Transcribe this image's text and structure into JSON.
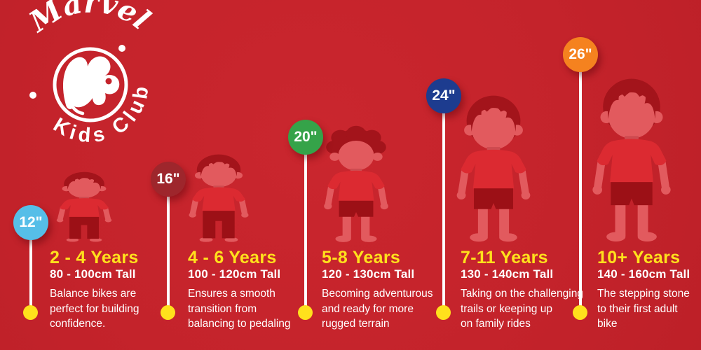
{
  "logo": {
    "brand": "Marvel",
    "club": "Kids Club"
  },
  "colors": {
    "background": "#C4232B",
    "accent_yellow": "#FFE11C",
    "text_white": "#FFFFFF"
  },
  "figure_colors": {
    "hair": "#A3141B",
    "skin": "#E25A5E",
    "skin_dark": "#CE4B50",
    "shirt": "#DC2A31",
    "bottoms": "#9C1016"
  },
  "columns": [
    {
      "badge": {
        "label": "12\"",
        "color": "#56BEE8"
      },
      "age": "2 - 4 Years",
      "height": "80 - 100cm Tall",
      "description": "Balance bikes are\nperfect for building\nconfidence."
    },
    {
      "badge": {
        "label": "16\"",
        "color": "#9E262C"
      },
      "age": "4 - 6 Years",
      "height": "100 - 120cm Tall",
      "description": "Ensures a smooth\ntransition from\nbalancing to pedaling"
    },
    {
      "badge": {
        "label": "20\"",
        "color": "#35A349"
      },
      "age": "5-8 Years",
      "height": "120 - 130cm Tall",
      "description": "Becoming adventurous\nand ready for more\nrugged terrain"
    },
    {
      "badge": {
        "label": "24\"",
        "color": "#1D3C8F"
      },
      "age": "7-11 Years",
      "height": "130 - 140cm Tall",
      "description": "Taking on the challenging\ntrails or keeping up\non family rides"
    },
    {
      "badge": {
        "label": "26\"",
        "color": "#F5821F"
      },
      "age": "10+ Years",
      "height": "140 - 160cm Tall",
      "description": "The stepping stone\nto their first adult\nbike"
    }
  ],
  "figures": [
    {
      "hair": "swept",
      "bottoms": "pants"
    },
    {
      "hair": "swept",
      "bottoms": "pants"
    },
    {
      "hair": "curly",
      "bottoms": "shorts"
    },
    {
      "hair": "swept",
      "bottoms": "shorts"
    },
    {
      "hair": "swept",
      "bottoms": "shorts"
    }
  ]
}
